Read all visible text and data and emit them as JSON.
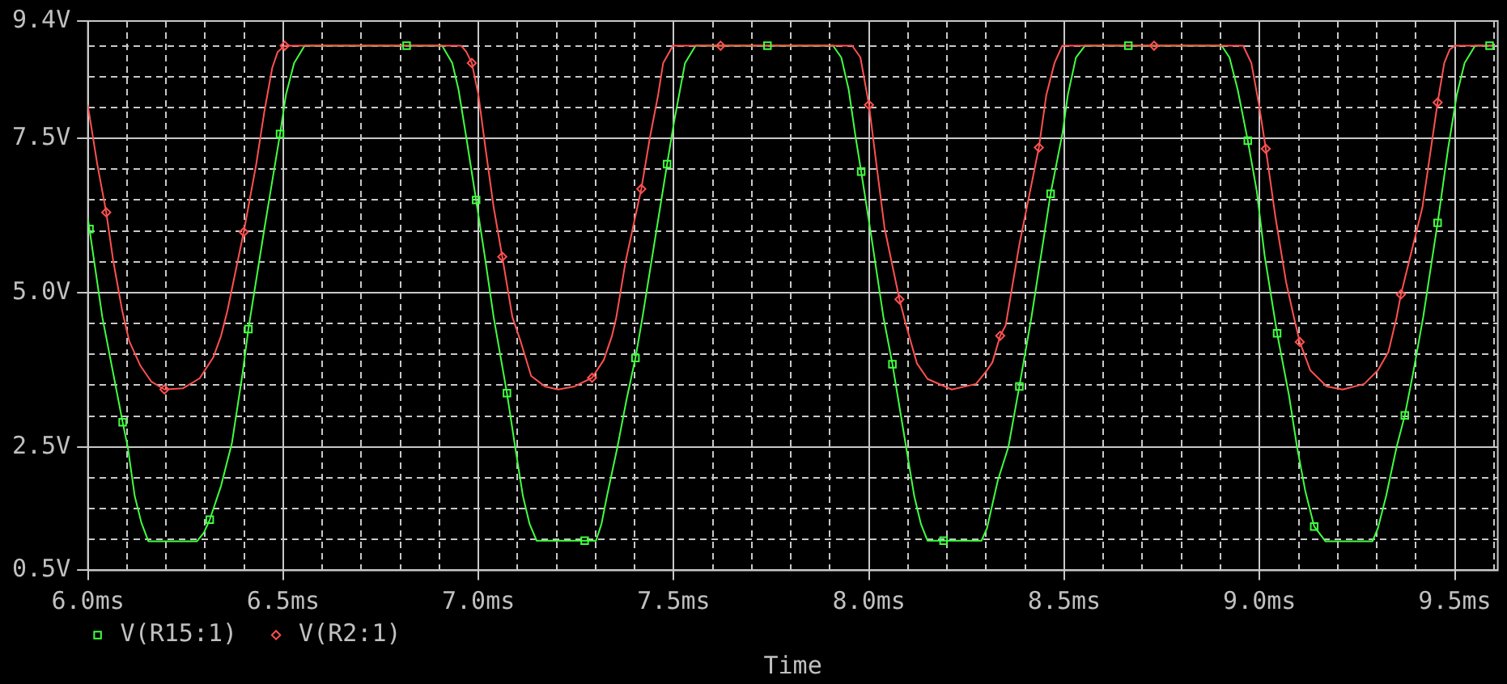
{
  "chart_data": {
    "type": "line",
    "xlabel": "Time",
    "xlim": [
      6.0,
      9.61
    ],
    "ylim": [
      0.5,
      9.4
    ],
    "xticks": [
      {
        "value": 6.0,
        "label": "6.0ms"
      },
      {
        "value": 6.1,
        "label": null
      },
      {
        "value": 6.2,
        "label": null
      },
      {
        "value": 6.3,
        "label": null
      },
      {
        "value": 6.4,
        "label": null
      },
      {
        "value": 6.5,
        "label": "6.5ms"
      },
      {
        "value": 6.6,
        "label": null
      },
      {
        "value": 6.7,
        "label": null
      },
      {
        "value": 6.8,
        "label": null
      },
      {
        "value": 6.9,
        "label": null
      },
      {
        "value": 7.0,
        "label": "7.0ms"
      },
      {
        "value": 7.1,
        "label": null
      },
      {
        "value": 7.2,
        "label": null
      },
      {
        "value": 7.3,
        "label": null
      },
      {
        "value": 7.4,
        "label": null
      },
      {
        "value": 7.5,
        "label": "7.5ms"
      },
      {
        "value": 7.6,
        "label": null
      },
      {
        "value": 7.7,
        "label": null
      },
      {
        "value": 7.8,
        "label": null
      },
      {
        "value": 7.9,
        "label": null
      },
      {
        "value": 8.0,
        "label": "8.0ms"
      },
      {
        "value": 8.1,
        "label": null
      },
      {
        "value": 8.2,
        "label": null
      },
      {
        "value": 8.3,
        "label": null
      },
      {
        "value": 8.4,
        "label": null
      },
      {
        "value": 8.5,
        "label": "8.5ms"
      },
      {
        "value": 8.6,
        "label": null
      },
      {
        "value": 8.7,
        "label": null
      },
      {
        "value": 8.8,
        "label": null
      },
      {
        "value": 8.9,
        "label": null
      },
      {
        "value": 9.0,
        "label": "9.0ms"
      },
      {
        "value": 9.1,
        "label": null
      },
      {
        "value": 9.2,
        "label": null
      },
      {
        "value": 9.3,
        "label": null
      },
      {
        "value": 9.4,
        "label": null
      },
      {
        "value": 9.5,
        "label": "9.5ms"
      },
      {
        "value": 9.6,
        "label": null
      }
    ],
    "yticks": [
      {
        "value": 0.5,
        "label": "0.5V"
      },
      {
        "value": 1.0,
        "label": null
      },
      {
        "value": 1.5,
        "label": null
      },
      {
        "value": 2.0,
        "label": null
      },
      {
        "value": 2.5,
        "label": "2.5V"
      },
      {
        "value": 3.0,
        "label": null
      },
      {
        "value": 3.5,
        "label": null
      },
      {
        "value": 4.0,
        "label": null
      },
      {
        "value": 4.5,
        "label": null
      },
      {
        "value": 5.0,
        "label": "5.0V"
      },
      {
        "value": 5.5,
        "label": null
      },
      {
        "value": 6.0,
        "label": null
      },
      {
        "value": 6.5,
        "label": null
      },
      {
        "value": 7.0,
        "label": null
      },
      {
        "value": 7.5,
        "label": "7.5V"
      },
      {
        "value": 8.0,
        "label": null
      },
      {
        "value": 8.5,
        "label": null
      },
      {
        "value": 9.0,
        "label": null
      },
      {
        "value": 9.4,
        "label": "9.4V"
      }
    ],
    "grid": true,
    "legend": "bottom left",
    "series": [
      {
        "color": "#40ff40",
        "x": [
          6.0,
          6.004,
          6.037,
          6.089,
          6.102,
          6.12,
          6.137,
          6.155,
          6.279,
          6.297,
          6.312,
          6.341,
          6.369,
          6.396,
          6.411,
          6.452,
          6.492,
          6.507,
          6.528,
          6.555,
          6.816,
          6.907,
          6.933,
          6.949,
          6.969,
          6.994,
          7.016,
          7.039,
          7.073,
          7.094,
          7.114,
          7.131,
          7.149,
          7.272,
          7.301,
          7.315,
          7.329,
          7.356,
          7.379,
          7.402,
          7.42,
          7.483,
          7.501,
          7.529,
          7.556,
          7.74,
          7.908,
          7.929,
          7.948,
          7.966,
          7.98,
          8.005,
          8.037,
          8.06,
          8.095,
          8.116,
          8.133,
          8.15,
          8.191,
          8.288,
          8.302,
          8.33,
          8.357,
          8.385,
          8.416,
          8.465,
          8.496,
          8.509,
          8.53,
          8.553,
          8.664,
          8.903,
          8.923,
          8.944,
          8.97,
          8.993,
          9.013,
          9.045,
          9.075,
          9.096,
          9.117,
          9.14,
          9.169,
          9.289,
          9.303,
          9.324,
          9.351,
          9.372,
          9.393,
          9.419,
          9.456,
          9.483,
          9.505,
          9.525,
          9.552,
          9.589,
          9.6
        ],
        "values": [
          6.2,
          6.03,
          4.6,
          2.9,
          2.5,
          1.7,
          1.27,
          0.97,
          0.97,
          1.11,
          1.32,
          1.87,
          2.57,
          3.69,
          4.41,
          6.04,
          7.57,
          8.2,
          8.72,
          9.0,
          9.0,
          9.0,
          8.72,
          8.29,
          7.51,
          6.5,
          5.6,
          4.6,
          3.37,
          2.5,
          1.7,
          1.25,
          0.98,
          0.98,
          0.98,
          1.25,
          1.7,
          2.5,
          3.26,
          3.94,
          4.6,
          7.08,
          7.77,
          8.72,
          9.0,
          9.0,
          9.0,
          8.81,
          8.29,
          7.51,
          6.96,
          5.95,
          4.6,
          3.84,
          2.5,
          1.7,
          1.25,
          0.98,
          0.98,
          0.98,
          1.18,
          1.96,
          2.5,
          3.48,
          4.6,
          6.6,
          7.6,
          8.2,
          8.81,
          9.0,
          9.0,
          9.0,
          8.81,
          8.29,
          7.46,
          6.64,
          5.6,
          4.34,
          3.35,
          2.5,
          1.79,
          1.21,
          0.97,
          0.97,
          1.18,
          1.7,
          2.5,
          3.01,
          3.69,
          4.6,
          6.13,
          7.34,
          8.2,
          8.72,
          9.0,
          9.0,
          9.0
        ]
      },
      {
        "color": "#ff5050",
        "x": [
          6.0,
          6.024,
          6.047,
          6.065,
          6.088,
          6.106,
          6.134,
          6.162,
          6.196,
          6.244,
          6.286,
          6.321,
          6.341,
          6.357,
          6.399,
          6.431,
          6.452,
          6.472,
          6.486,
          6.504,
          6.956,
          6.969,
          6.983,
          7.0,
          7.018,
          7.039,
          7.061,
          7.087,
          7.108,
          7.135,
          7.17,
          7.204,
          7.246,
          7.291,
          7.321,
          7.342,
          7.353,
          7.377,
          7.417,
          7.439,
          7.46,
          7.473,
          7.498,
          7.62,
          7.957,
          7.978,
          8.0,
          8.019,
          8.04,
          8.078,
          8.095,
          8.123,
          8.15,
          8.212,
          8.274,
          8.302,
          8.316,
          8.336,
          8.35,
          8.385,
          8.435,
          8.454,
          8.475,
          8.495,
          8.73,
          8.958,
          8.979,
          8.999,
          9.016,
          9.041,
          9.068,
          9.088,
          9.103,
          9.13,
          9.172,
          9.213,
          9.268,
          9.303,
          9.33,
          9.351,
          9.362,
          9.417,
          9.456,
          9.473,
          9.487,
          9.501,
          9.6
        ],
        "values": [
          8.03,
          7.08,
          6.3,
          5.51,
          4.7,
          4.21,
          3.82,
          3.56,
          3.43,
          3.45,
          3.61,
          3.95,
          4.3,
          4.7,
          5.98,
          7.08,
          7.94,
          8.64,
          8.9,
          9.0,
          9.0,
          8.9,
          8.72,
          8.2,
          7.34,
          6.38,
          5.58,
          4.6,
          4.21,
          3.65,
          3.48,
          3.43,
          3.48,
          3.62,
          3.91,
          4.3,
          4.6,
          5.51,
          6.68,
          7.51,
          8.2,
          8.72,
          9.0,
          9.0,
          9.0,
          8.81,
          8.04,
          7.08,
          6.04,
          4.89,
          4.47,
          3.85,
          3.6,
          3.43,
          3.52,
          3.74,
          3.87,
          4.3,
          4.47,
          5.78,
          7.35,
          8.2,
          8.72,
          9.0,
          9.0,
          9.0,
          8.72,
          8.03,
          7.33,
          6.21,
          5.17,
          4.6,
          4.2,
          3.74,
          3.48,
          3.43,
          3.52,
          3.74,
          4.04,
          4.6,
          4.97,
          6.38,
          8.08,
          8.72,
          8.94,
          9.0,
          9.0
        ]
      },
      {
        "type": "scatter",
        "name": "V(R15:1)",
        "color": "#40ff40",
        "marker": "square",
        "x": [
          6.004,
          6.089,
          6.312,
          6.411,
          6.492,
          6.816,
          6.994,
          7.073,
          7.272,
          7.402,
          7.483,
          7.74,
          7.98,
          8.06,
          8.191,
          8.385,
          8.465,
          8.664,
          8.97,
          9.045,
          9.14,
          9.372,
          9.456,
          9.589
        ],
        "values": [
          6.03,
          2.9,
          1.32,
          4.41,
          7.57,
          9.0,
          6.5,
          3.37,
          0.98,
          3.94,
          7.08,
          9.0,
          6.96,
          3.84,
          0.98,
          3.48,
          6.6,
          9.0,
          7.46,
          4.34,
          1.21,
          3.01,
          6.13,
          9.0
        ]
      },
      {
        "type": "scatter",
        "name": "V(R2:1)",
        "color": "#ff5050",
        "marker": "diamond",
        "x": [
          6.047,
          6.196,
          6.399,
          6.504,
          6.983,
          7.061,
          7.291,
          7.417,
          7.62,
          8.0,
          8.078,
          8.336,
          8.435,
          8.73,
          9.016,
          9.103,
          9.362,
          9.456
        ],
        "values": [
          6.3,
          3.43,
          5.98,
          9.0,
          8.72,
          5.58,
          3.62,
          6.68,
          9.0,
          8.04,
          4.89,
          4.3,
          7.35,
          9.0,
          7.33,
          4.2,
          4.97,
          8.08
        ]
      }
    ]
  }
}
